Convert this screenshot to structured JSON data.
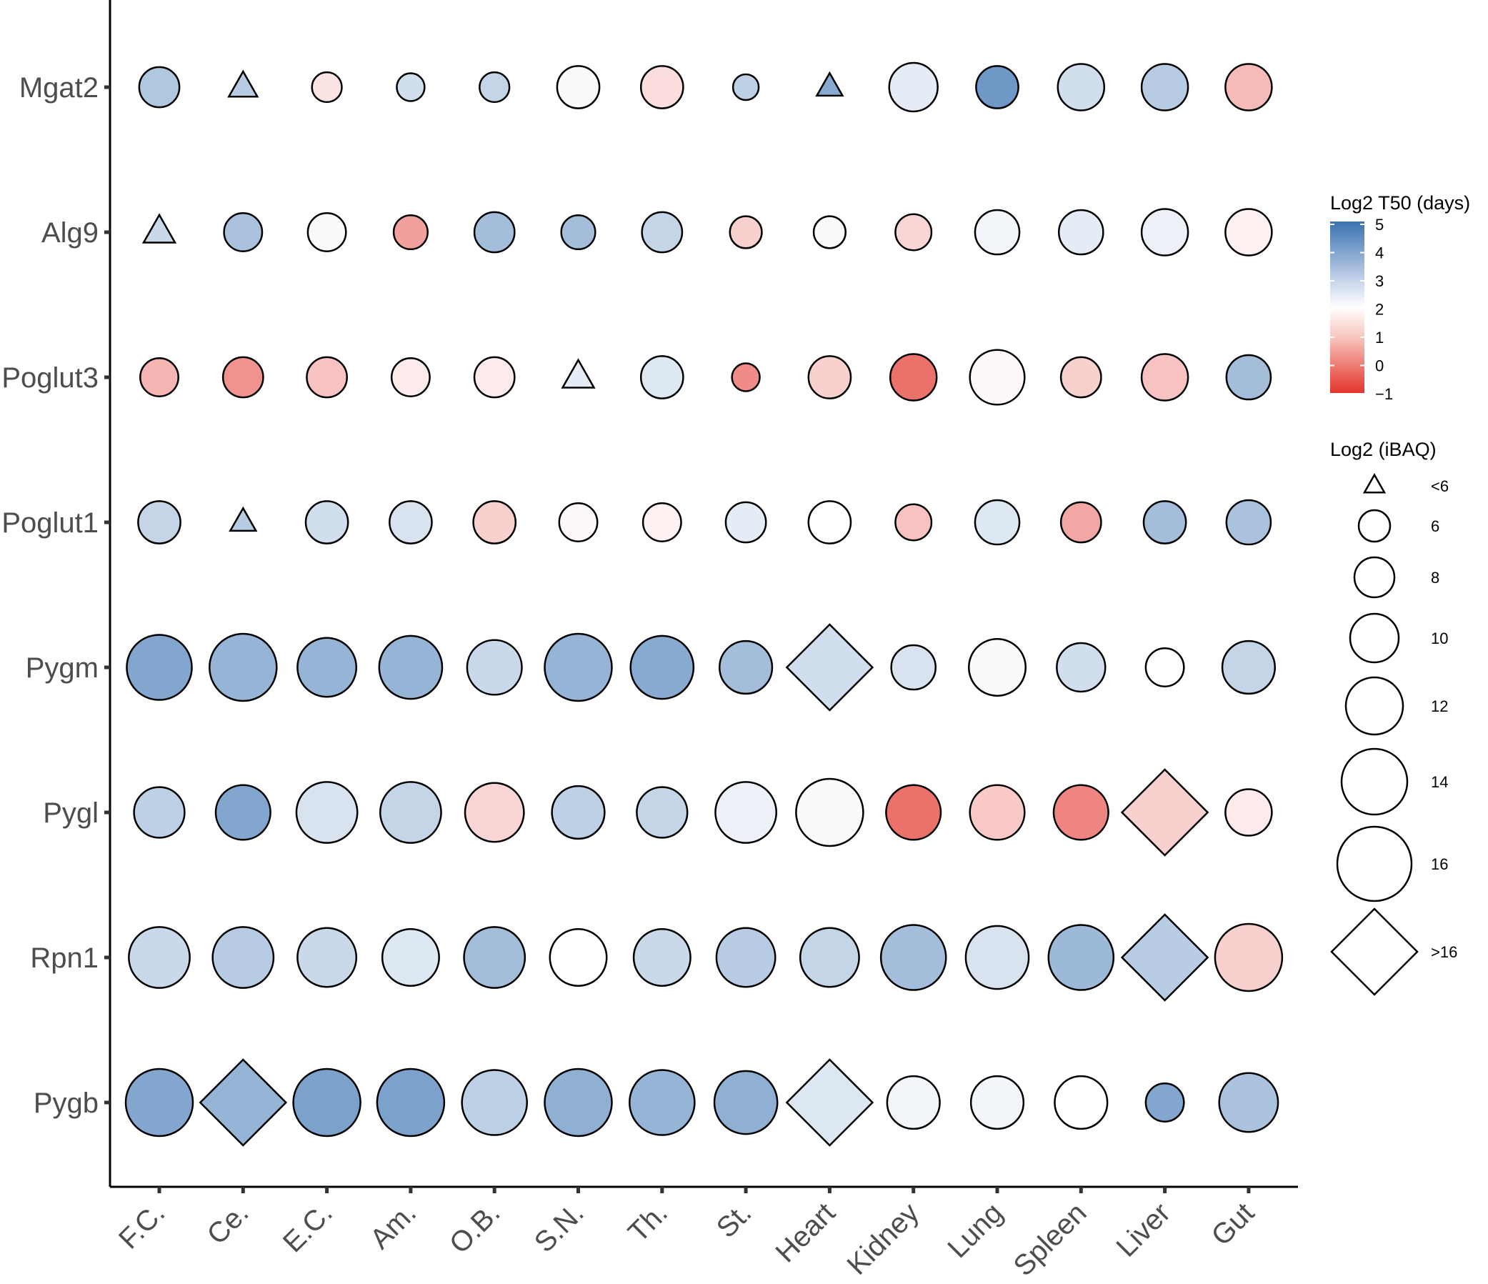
{
  "chart_data": {
    "type": "bubble-matrix",
    "title": "",
    "xlabel": "",
    "ylabel": "",
    "categories": [
      "F.C.",
      "Ce.",
      "E.C.",
      "Am.",
      "O.B.",
      "S.N.",
      "Th.",
      "St.",
      "Heart",
      "Kidney",
      "Lung",
      "Spleen",
      "Liver",
      "Gut"
    ],
    "genes": [
      "Mgat2",
      "Alg9",
      "Poglut3",
      "Poglut1",
      "Pygm",
      "Pygl",
      "Rpn1",
      "Pygb"
    ],
    "rows": [
      {
        "gene": "Mgat2",
        "t50": [
          3.2,
          3.1,
          1.6,
          2.7,
          2.9,
          2.1,
          1.5,
          3.0,
          3.8,
          2.4,
          4.2,
          2.7,
          3.1,
          1.0
        ],
        "ibaq": [
          9.5,
          5.0,
          7.0,
          6.5,
          7.0,
          10.0,
          10.0,
          6.0,
          4.5,
          11.5,
          10.0,
          11.0,
          11.0,
          11.0
        ]
      },
      {
        "gene": "Alg9",
        "t50": [
          2.8,
          3.3,
          2.1,
          0.6,
          3.4,
          3.4,
          2.9,
          1.3,
          2.1,
          1.4,
          2.2,
          2.4,
          2.3,
          1.8
        ],
        "ibaq": [
          5.5,
          9.0,
          9.0,
          8.0,
          9.5,
          8.0,
          9.5,
          7.5,
          7.5,
          8.5,
          10.5,
          10.5,
          11.0,
          11.0
        ]
      },
      {
        "gene": "Poglut3",
        "t50": [
          0.9,
          0.4,
          1.1,
          1.7,
          1.7,
          2.4,
          2.5,
          0.3,
          1.3,
          -0.1,
          1.9,
          1.3,
          1.1,
          3.4
        ],
        "ibaq": [
          9.0,
          9.5,
          9.5,
          9.0,
          9.5,
          5.5,
          10.0,
          6.5,
          10.0,
          11.0,
          13.0,
          9.5,
          11.0,
          10.5
        ]
      },
      {
        "gene": "Poglut1",
        "t50": [
          2.9,
          3.1,
          2.7,
          2.6,
          1.3,
          1.9,
          1.8,
          2.4,
          2.0,
          1.1,
          2.5,
          0.7,
          3.4,
          3.3
        ],
        "ibaq": [
          10.0,
          4.5,
          10.0,
          10.0,
          10.0,
          9.0,
          9.0,
          9.5,
          10.0,
          8.5,
          10.5,
          9.5,
          10.0,
          10.5
        ]
      },
      {
        "gene": "Pygm",
        "t50": [
          3.9,
          3.6,
          3.6,
          3.6,
          2.8,
          3.6,
          3.8,
          3.4,
          2.7,
          2.6,
          2.1,
          2.7,
          2.0,
          2.9
        ],
        "ibaq": [
          15.5,
          16.0,
          14.0,
          15.0,
          13.0,
          16.0,
          15.0,
          12.5,
          17.0,
          10.5,
          13.5,
          11.5,
          9.0,
          12.5
        ]
      },
      {
        "gene": "Pygl",
        "t50": [
          3.0,
          3.9,
          2.6,
          2.9,
          1.4,
          3.0,
          2.9,
          2.3,
          2.1,
          -0.1,
          1.2,
          0.2,
          1.3,
          1.7
        ],
        "ibaq": [
          12.0,
          13.0,
          14.5,
          14.5,
          14.0,
          12.5,
          12.0,
          14.5,
          16.0,
          13.0,
          13.0,
          13.0,
          17.0,
          11.0
        ]
      },
      {
        "gene": "Rpn1",
        "t50": [
          2.8,
          3.1,
          2.8,
          2.5,
          3.4,
          2.0,
          2.8,
          3.1,
          2.9,
          3.4,
          2.6,
          3.5,
          3.1,
          1.3
        ],
        "ibaq": [
          14.5,
          14.5,
          14.0,
          13.5,
          14.5,
          13.5,
          13.5,
          14.0,
          14.0,
          15.5,
          15.0,
          15.5,
          17.0,
          16.0
        ]
      },
      {
        "gene": "Pygb",
        "t50": [
          3.9,
          3.6,
          4.0,
          4.0,
          3.0,
          3.7,
          3.6,
          3.7,
          2.5,
          2.2,
          2.2,
          2.0,
          3.9,
          3.3
        ],
        "ibaq": [
          16.0,
          17.0,
          16.0,
          16.0,
          15.5,
          16.0,
          15.5,
          15.0,
          17.0,
          12.5,
          12.5,
          12.5,
          9.0,
          14.0
        ]
      }
    ],
    "color_legend": {
      "title": "Log2 T50 (days)",
      "ticks": [
        "5",
        "4",
        "3",
        "2",
        "1",
        "0",
        "−1"
      ],
      "range": [
        -1,
        5
      ],
      "low_color": "#e3342c",
      "mid_color": "#ffffff",
      "high_color": "#3a72b1",
      "mid_value": 2
    },
    "size_legend": {
      "title": "Log2 (iBAQ)",
      "items": [
        {
          "label": "<6",
          "shape": "triangle",
          "value": 5
        },
        {
          "label": "6",
          "shape": "circle",
          "value": 6
        },
        {
          "label": "8",
          "shape": "circle",
          "value": 8
        },
        {
          "label": "10",
          "shape": "circle",
          "value": 10
        },
        {
          "label": "12",
          "shape": "circle",
          "value": 12
        },
        {
          "label": "14",
          "shape": "circle",
          "value": 14
        },
        {
          "label": "16",
          "shape": "circle",
          "value": 16
        },
        {
          "label": ">16",
          "shape": "diamond",
          "value": 17
        }
      ]
    },
    "grid": false,
    "legend_position": "right"
  }
}
